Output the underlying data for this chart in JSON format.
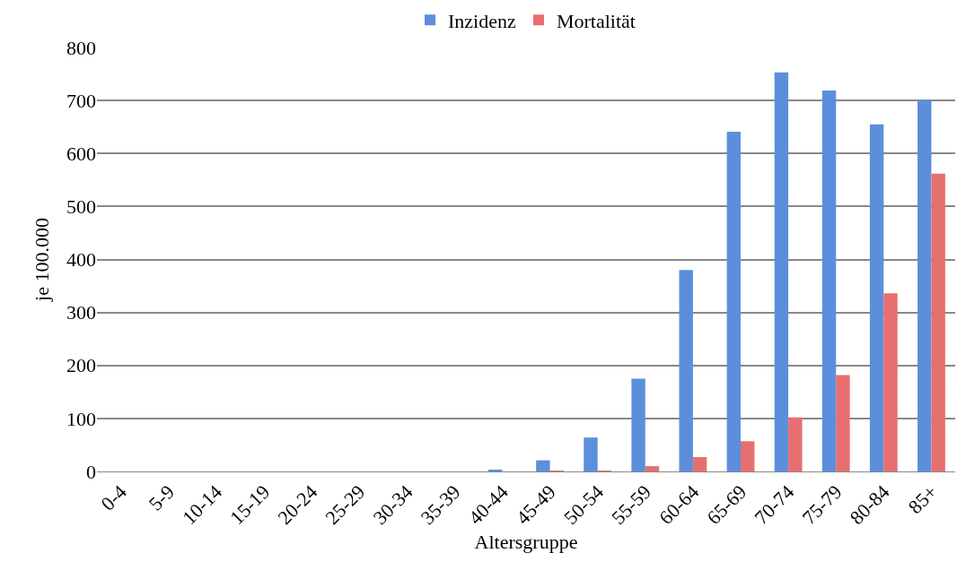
{
  "chart_data": {
    "type": "bar",
    "xlabel": "Altersgruppe",
    "ylabel": "je 100.000",
    "categories": [
      "0-4",
      "5-9",
      "10-14",
      "15-19",
      "20-24",
      "25-29",
      "30-34",
      "35-39",
      "40-44",
      "45-49",
      "50-54",
      "55-59",
      "60-64",
      "65-69",
      "70-74",
      "75-79",
      "80-84",
      "85+"
    ],
    "series": [
      {
        "name": "Inzidenz",
        "color": "#5b8fdc",
        "values": [
          0,
          0,
          0,
          0,
          0,
          0,
          0,
          0,
          2,
          21,
          64,
          175,
          380,
          641,
          753,
          719,
          655,
          701
        ]
      },
      {
        "name": "Mortalität",
        "color": "#e86f6f",
        "values": [
          0,
          0,
          0,
          0,
          0,
          0,
          0,
          0,
          0,
          1,
          1,
          10,
          27,
          57,
          102,
          182,
          336,
          562
        ]
      }
    ],
    "ylim": [
      0,
      800
    ],
    "yticks": [
      0,
      100,
      200,
      300,
      400,
      500,
      600,
      700,
      800
    ],
    "grid": "y",
    "legend": "top"
  }
}
